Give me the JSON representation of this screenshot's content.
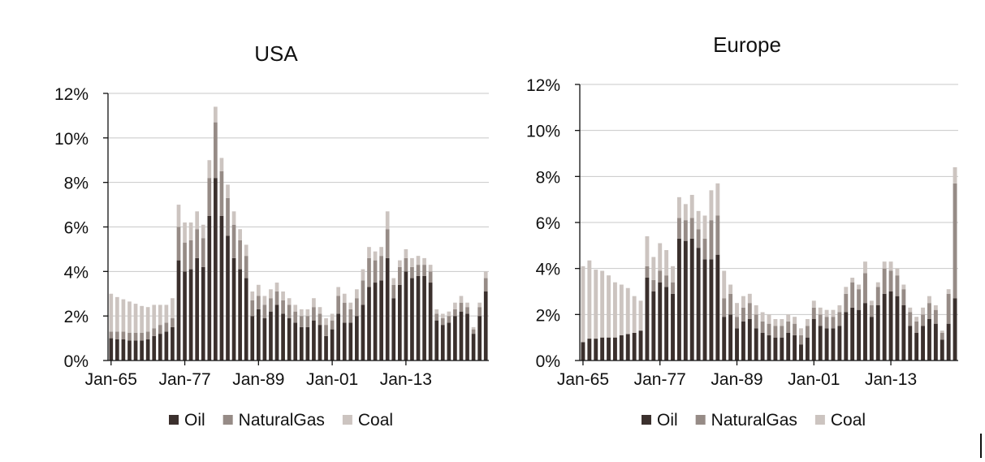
{
  "colors": {
    "oil": "#3b302d",
    "natural_gas": "#968b86",
    "coal": "#ccc4c0"
  },
  "chart_data": [
    {
      "type": "bar",
      "stacked": true,
      "title": "USA",
      "xlabel": "",
      "ylabel": "",
      "ylim": [
        0,
        12
      ],
      "y_ticks": [
        "0%",
        "2%",
        "4%",
        "6%",
        "8%",
        "10%",
        "12%"
      ],
      "x_ticks": [
        "Jan-65",
        "Jan-77",
        "Jan-89",
        "Jan-01",
        "Jan-13"
      ],
      "x_start_year": 1965,
      "x_end_year": 2022,
      "grid": true,
      "legend": "bottom",
      "series": [
        {
          "name": "Oil",
          "color_key": "oil",
          "values": [
            1.0,
            0.95,
            0.95,
            0.9,
            0.9,
            0.9,
            0.95,
            1.1,
            1.2,
            1.3,
            1.5,
            4.5,
            4.0,
            4.1,
            4.6,
            4.2,
            6.5,
            8.2,
            6.5,
            5.6,
            4.6,
            4.1,
            3.7,
            2.0,
            2.3,
            1.9,
            2.2,
            2.5,
            2.1,
            1.9,
            1.7,
            1.5,
            1.5,
            1.8,
            1.6,
            1.1,
            1.4,
            2.1,
            1.7,
            1.7,
            2.0,
            2.5,
            3.3,
            3.5,
            3.6,
            4.6,
            2.8,
            3.4,
            4.0,
            3.7,
            3.8,
            3.8,
            3.5,
            1.8,
            1.6,
            1.7,
            2.0,
            2.2,
            2.1,
            1.2,
            2.0,
            3.1
          ]
        },
        {
          "name": "NaturalGas",
          "color_key": "natural_gas",
          "values": [
            0.3,
            0.35,
            0.35,
            0.35,
            0.35,
            0.35,
            0.35,
            0.35,
            0.4,
            0.4,
            0.4,
            1.5,
            1.3,
            1.3,
            1.3,
            1.3,
            1.7,
            2.5,
            2.0,
            1.7,
            1.5,
            1.3,
            1.0,
            0.7,
            0.6,
            0.6,
            0.6,
            0.6,
            0.6,
            0.6,
            0.5,
            0.5,
            0.5,
            0.6,
            0.5,
            0.5,
            0.4,
            0.8,
            0.9,
            0.6,
            0.8,
            1.1,
            1.3,
            1.0,
            1.1,
            1.3,
            0.6,
            0.8,
            0.6,
            0.5,
            0.5,
            0.5,
            0.5,
            0.3,
            0.3,
            0.3,
            0.3,
            0.4,
            0.3,
            0.2,
            0.4,
            0.6
          ]
        },
        {
          "name": "Coal",
          "color_key": "coal",
          "values": [
            1.7,
            1.55,
            1.45,
            1.4,
            1.3,
            1.2,
            1.1,
            1.05,
            0.9,
            0.8,
            0.9,
            1.0,
            0.9,
            0.8,
            0.8,
            0.6,
            0.8,
            0.7,
            0.6,
            0.6,
            0.6,
            0.5,
            0.5,
            0.4,
            0.5,
            0.4,
            0.4,
            0.4,
            0.4,
            0.3,
            0.3,
            0.3,
            0.3,
            0.4,
            0.3,
            0.3,
            0.3,
            0.4,
            0.4,
            0.3,
            0.4,
            0.5,
            0.5,
            0.4,
            0.4,
            0.8,
            0.3,
            0.3,
            0.4,
            0.4,
            0.4,
            0.3,
            0.3,
            0.2,
            0.2,
            0.2,
            0.3,
            0.3,
            0.2,
            0.1,
            0.2,
            0.3
          ]
        }
      ]
    },
    {
      "type": "bar",
      "stacked": true,
      "title": "Europe",
      "xlabel": "",
      "ylabel": "",
      "ylim": [
        0,
        12
      ],
      "y_ticks": [
        "0%",
        "2%",
        "4%",
        "6%",
        "8%",
        "10%",
        "12%"
      ],
      "x_ticks": [
        "Jan-65",
        "Jan-77",
        "Jan-89",
        "Jan-01",
        "Jan-13"
      ],
      "x_start_year": 1965,
      "x_end_year": 2022,
      "grid": true,
      "legend": "bottom",
      "series": [
        {
          "name": "Oil",
          "color_key": "oil",
          "values": [
            0.8,
            0.95,
            0.95,
            1.0,
            1.0,
            1.0,
            1.1,
            1.15,
            1.2,
            1.3,
            3.6,
            3.0,
            3.4,
            3.2,
            2.9,
            5.3,
            5.2,
            5.3,
            4.9,
            4.4,
            4.4,
            4.6,
            1.9,
            2.0,
            1.4,
            1.7,
            1.8,
            1.4,
            1.2,
            1.1,
            1.0,
            1.0,
            1.2,
            1.1,
            0.7,
            1.0,
            1.8,
            1.5,
            1.4,
            1.4,
            1.5,
            2.1,
            2.3,
            2.2,
            2.5,
            1.9,
            2.4,
            2.9,
            3.0,
            2.8,
            2.4,
            1.5,
            1.2,
            1.5,
            1.8,
            1.6,
            0.9,
            1.6,
            2.7
          ]
        },
        {
          "name": "NaturalGas",
          "color_key": "natural_gas",
          "values": [
            0.0,
            0.0,
            0.0,
            0.0,
            0.0,
            0.0,
            0.0,
            0.0,
            0.0,
            0.0,
            0.5,
            0.5,
            0.5,
            0.5,
            0.5,
            0.9,
            0.9,
            0.9,
            0.8,
            0.9,
            1.7,
            1.7,
            0.8,
            0.9,
            0.5,
            0.6,
            0.7,
            0.6,
            0.5,
            0.5,
            0.5,
            0.5,
            0.5,
            0.5,
            0.4,
            0.5,
            0.5,
            0.5,
            0.5,
            0.5,
            0.6,
            0.8,
            1.1,
            0.9,
            1.3,
            0.5,
            0.8,
            1.1,
            0.9,
            0.9,
            0.7,
            0.6,
            0.5,
            0.5,
            0.7,
            0.6,
            0.3,
            1.3,
            5.0
          ]
        },
        {
          "name": "Coal",
          "color_key": "coal",
          "values": [
            3.3,
            3.4,
            3.0,
            2.9,
            2.7,
            2.4,
            2.2,
            2.0,
            1.6,
            1.3,
            1.3,
            1.0,
            1.2,
            1.1,
            0.7,
            0.9,
            0.7,
            1.0,
            0.8,
            1.0,
            1.3,
            1.4,
            1.2,
            0.4,
            0.6,
            0.5,
            0.4,
            0.4,
            0.4,
            0.4,
            0.3,
            0.3,
            0.3,
            0.3,
            0.3,
            0.3,
            0.3,
            0.3,
            0.3,
            0.3,
            0.3,
            0.3,
            0.2,
            0.2,
            0.5,
            0.2,
            0.2,
            0.3,
            0.4,
            0.3,
            0.2,
            0.2,
            0.2,
            0.3,
            0.3,
            0.2,
            0.1,
            0.2,
            0.7
          ]
        }
      ]
    }
  ]
}
